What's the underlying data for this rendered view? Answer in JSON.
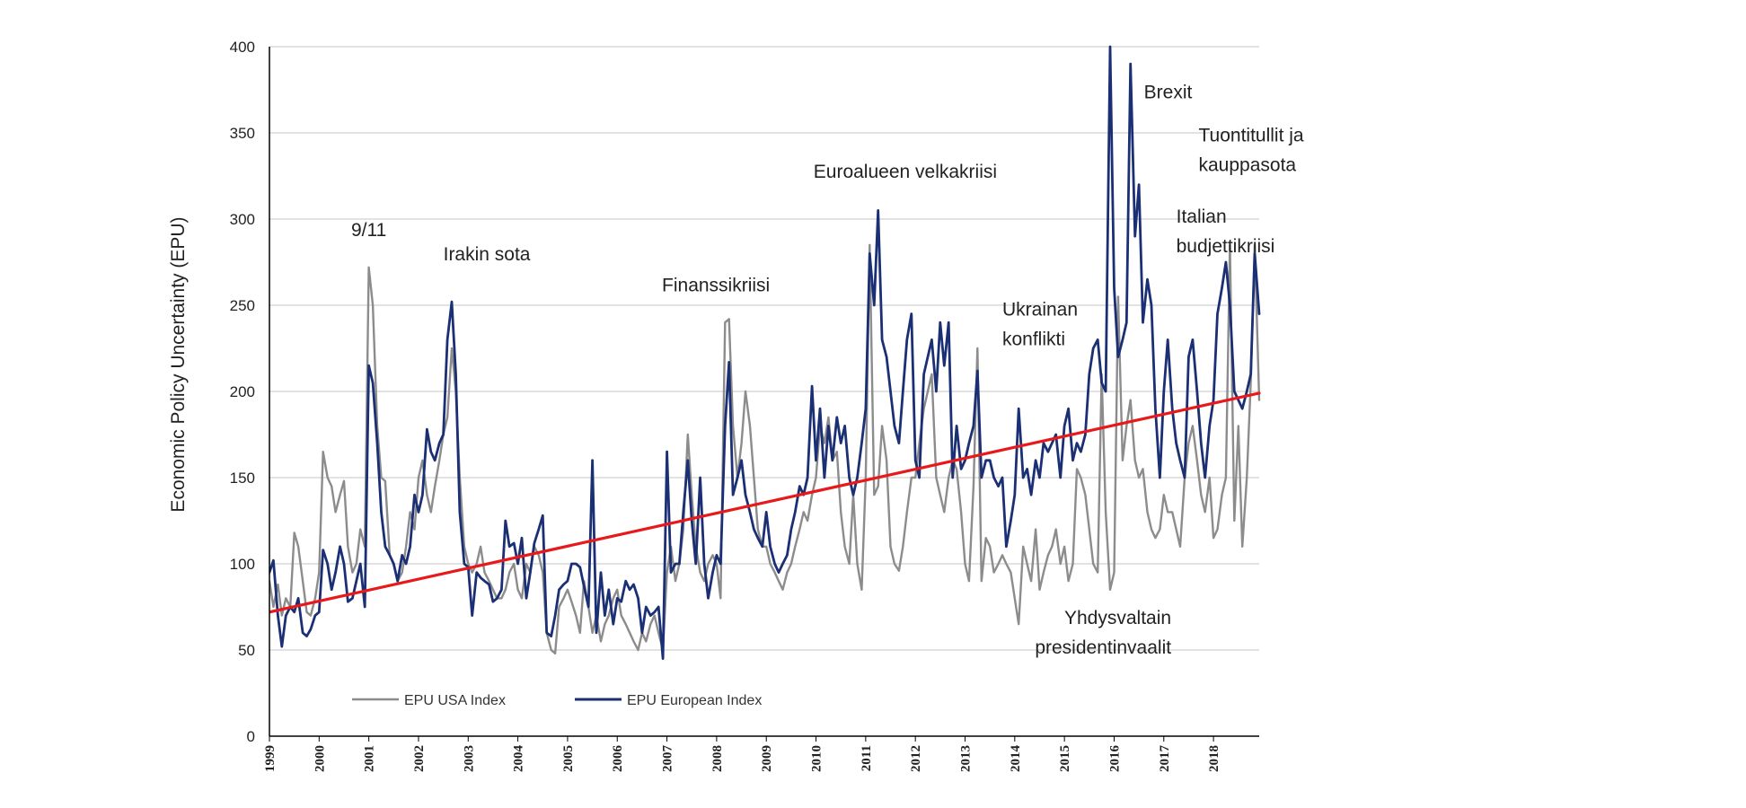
{
  "chart_data": {
    "type": "line",
    "ylabel": "Economic Policy Uncertainty (EPU)",
    "xlabel": "",
    "ylim": [
      0,
      400
    ],
    "xlim": [
      1999,
      2018.92
    ],
    "yticks": [
      0,
      50,
      100,
      150,
      200,
      250,
      300,
      350,
      400
    ],
    "xticks": [
      "1999",
      "2000",
      "2001",
      "2002",
      "2003",
      "2004",
      "2005",
      "2006",
      "2007",
      "2008",
      "2009",
      "2010",
      "2011",
      "2012",
      "2013",
      "2014",
      "2015",
      "2016",
      "2017",
      "2018"
    ],
    "grid": "horizontal",
    "legend_position": "bottom-left",
    "colors": {
      "usa": "#8c8c8c",
      "europe": "#1b2f74",
      "trend": "#e8191b",
      "grid": "#d9d9d9",
      "axis": "#000000"
    },
    "legend": [
      {
        "key": "usa",
        "label": "EPU USA Index"
      },
      {
        "key": "europe",
        "label": "EPU European Index"
      }
    ],
    "annotations": [
      {
        "lines": [
          "9/11"
        ],
        "x": 2001.0,
        "y": 290,
        "anchor": "middle"
      },
      {
        "lines": [
          "Irakin sota"
        ],
        "x": 2002.5,
        "y": 276,
        "anchor": "start"
      },
      {
        "lines": [
          "Finanssikriisi"
        ],
        "x": 2006.9,
        "y": 258,
        "anchor": "start"
      },
      {
        "lines": [
          "Euroalueen velkakriisi"
        ],
        "x": 2009.95,
        "y": 324,
        "anchor": "start"
      },
      {
        "lines": [
          "Ukrainan",
          "konflikti"
        ],
        "x": 2013.75,
        "y": 244,
        "anchor": "start"
      },
      {
        "lines": [
          "Brexit"
        ],
        "x": 2016.6,
        "y": 370,
        "anchor": "start"
      },
      {
        "lines": [
          "Tuontitullit ja",
          "kauppasota"
        ],
        "x": 2017.7,
        "y": 345,
        "anchor": "start"
      },
      {
        "lines": [
          "Italian",
          "budjettikriisi"
        ],
        "x": 2017.25,
        "y": 298,
        "anchor": "start"
      },
      {
        "lines": [
          "Yhdysvaltain",
          "presidentinvaalit"
        ],
        "x": 2017.15,
        "y": 65,
        "anchor": "end"
      }
    ],
    "series": [
      {
        "key": "usa",
        "name": "EPU USA Index",
        "x": [
          1999.0,
          1999.08,
          1999.17,
          1999.25,
          1999.33,
          1999.42,
          1999.5,
          1999.58,
          1999.67,
          1999.75,
          1999.83,
          1999.92,
          2000.0,
          2000.08,
          2000.17,
          2000.25,
          2000.33,
          2000.42,
          2000.5,
          2000.58,
          2000.67,
          2000.75,
          2000.83,
          2000.92,
          2001.0,
          2001.08,
          2001.17,
          2001.25,
          2001.33,
          2001.42,
          2001.5,
          2001.58,
          2001.67,
          2001.75,
          2001.83,
          2001.92,
          2002.0,
          2002.08,
          2002.17,
          2002.25,
          2002.33,
          2002.42,
          2002.5,
          2002.58,
          2002.67,
          2002.75,
          2002.83,
          2002.92,
          2003.0,
          2003.08,
          2003.17,
          2003.25,
          2003.33,
          2003.42,
          2003.5,
          2003.58,
          2003.67,
          2003.75,
          2003.83,
          2003.92,
          2004.0,
          2004.08,
          2004.17,
          2004.25,
          2004.33,
          2004.42,
          2004.5,
          2004.58,
          2004.67,
          2004.75,
          2004.83,
          2004.92,
          2005.0,
          2005.08,
          2005.17,
          2005.25,
          2005.33,
          2005.42,
          2005.5,
          2005.58,
          2005.67,
          2005.75,
          2005.83,
          2005.92,
          2006.0,
          2006.08,
          2006.17,
          2006.25,
          2006.33,
          2006.42,
          2006.5,
          2006.58,
          2006.67,
          2006.75,
          2006.83,
          2006.92,
          2007.0,
          2007.08,
          2007.17,
          2007.25,
          2007.33,
          2007.42,
          2007.5,
          2007.58,
          2007.67,
          2007.75,
          2007.83,
          2007.92,
          2008.0,
          2008.08,
          2008.17,
          2008.25,
          2008.33,
          2008.42,
          2008.5,
          2008.58,
          2008.67,
          2008.75,
          2008.83,
          2008.92,
          2009.0,
          2009.08,
          2009.17,
          2009.25,
          2009.33,
          2009.42,
          2009.5,
          2009.58,
          2009.67,
          2009.75,
          2009.83,
          2009.92,
          2010.0,
          2010.08,
          2010.17,
          2010.25,
          2010.33,
          2010.42,
          2010.5,
          2010.58,
          2010.67,
          2010.75,
          2010.83,
          2010.92,
          2011.0,
          2011.08,
          2011.17,
          2011.25,
          2011.33,
          2011.42,
          2011.5,
          2011.58,
          2011.67,
          2011.75,
          2011.83,
          2011.92,
          2012.0,
          2012.08,
          2012.17,
          2012.25,
          2012.33,
          2012.42,
          2012.5,
          2012.58,
          2012.67,
          2012.75,
          2012.83,
          2012.92,
          2013.0,
          2013.08,
          2013.17,
          2013.25,
          2013.33,
          2013.42,
          2013.5,
          2013.58,
          2013.67,
          2013.75,
          2013.83,
          2013.92,
          2014.0,
          2014.08,
          2014.17,
          2014.25,
          2014.33,
          2014.42,
          2014.5,
          2014.58,
          2014.67,
          2014.75,
          2014.83,
          2014.92,
          2015.0,
          2015.08,
          2015.17,
          2015.25,
          2015.33,
          2015.42,
          2015.5,
          2015.58,
          2015.67,
          2015.75,
          2015.83,
          2015.92,
          2016.0,
          2016.08,
          2016.17,
          2016.25,
          2016.33,
          2016.42,
          2016.5,
          2016.58,
          2016.67,
          2016.75,
          2016.83,
          2016.92,
          2017.0,
          2017.08,
          2017.17,
          2017.25,
          2017.33,
          2017.42,
          2017.5,
          2017.58,
          2017.67,
          2017.75,
          2017.83,
          2017.92,
          2018.0,
          2018.08,
          2018.17,
          2018.25,
          2018.33,
          2018.42,
          2018.5,
          2018.58,
          2018.67,
          2018.75,
          2018.83,
          2018.92
        ],
        "y": [
          90,
          75,
          88,
          70,
          80,
          75,
          118,
          110,
          90,
          72,
          70,
          80,
          95,
          165,
          150,
          145,
          130,
          140,
          148,
          110,
          95,
          100,
          120,
          110,
          272,
          250,
          180,
          150,
          148,
          105,
          100,
          90,
          95,
          110,
          130,
          120,
          150,
          160,
          140,
          130,
          145,
          160,
          175,
          185,
          225,
          200,
          150,
          110,
          100,
          95,
          100,
          110,
          95,
          90,
          85,
          80,
          80,
          85,
          95,
          100,
          85,
          80,
          100,
          95,
          110,
          105,
          95,
          60,
          50,
          48,
          75,
          80,
          85,
          78,
          70,
          60,
          90,
          75,
          60,
          70,
          55,
          65,
          70,
          80,
          85,
          70,
          65,
          60,
          55,
          50,
          60,
          55,
          65,
          70,
          60,
          50,
          95,
          110,
          90,
          100,
          120,
          175,
          140,
          110,
          95,
          90,
          100,
          105,
          100,
          80,
          240,
          242,
          180,
          150,
          170,
          200,
          180,
          150,
          120,
          110,
          110,
          100,
          95,
          90,
          85,
          95,
          100,
          110,
          120,
          130,
          125,
          140,
          150,
          180,
          170,
          185,
          160,
          165,
          130,
          110,
          100,
          140,
          100,
          85,
          150,
          285,
          140,
          145,
          180,
          160,
          110,
          100,
          96,
          110,
          130,
          150,
          150,
          170,
          190,
          200,
          210,
          150,
          140,
          130,
          150,
          160,
          155,
          130,
          100,
          90,
          145,
          225,
          90,
          115,
          110,
          95,
          100,
          105,
          100,
          95,
          80,
          65,
          110,
          100,
          90,
          120,
          85,
          95,
          105,
          110,
          120,
          100,
          110,
          90,
          100,
          155,
          150,
          140,
          120,
          100,
          95,
          210,
          130,
          85,
          95,
          255,
          160,
          180,
          195,
          160,
          150,
          155,
          130,
          120,
          115,
          120,
          140,
          130,
          130,
          120,
          110,
          150,
          170,
          180,
          160,
          140,
          130,
          150,
          115,
          120,
          140,
          150,
          285,
          125,
          180,
          110,
          150,
          205,
          285,
          195
        ]
      },
      {
        "key": "europe",
        "name": "EPU European Index",
        "x": [
          1999.0,
          1999.08,
          1999.17,
          1999.25,
          1999.33,
          1999.42,
          1999.5,
          1999.58,
          1999.67,
          1999.75,
          1999.83,
          1999.92,
          2000.0,
          2000.08,
          2000.17,
          2000.25,
          2000.33,
          2000.42,
          2000.5,
          2000.58,
          2000.67,
          2000.75,
          2000.83,
          2000.92,
          2001.0,
          2001.08,
          2001.17,
          2001.25,
          2001.33,
          2001.42,
          2001.5,
          2001.58,
          2001.67,
          2001.75,
          2001.83,
          2001.92,
          2002.0,
          2002.08,
          2002.17,
          2002.25,
          2002.33,
          2002.42,
          2002.5,
          2002.58,
          2002.67,
          2002.75,
          2002.83,
          2002.92,
          2003.0,
          2003.08,
          2003.17,
          2003.25,
          2003.33,
          2003.42,
          2003.5,
          2003.58,
          2003.67,
          2003.75,
          2003.83,
          2003.92,
          2004.0,
          2004.08,
          2004.17,
          2004.25,
          2004.33,
          2004.42,
          2004.5,
          2004.58,
          2004.67,
          2004.75,
          2004.83,
          2004.92,
          2005.0,
          2005.08,
          2005.17,
          2005.25,
          2005.33,
          2005.42,
          2005.5,
          2005.58,
          2005.67,
          2005.75,
          2005.83,
          2005.92,
          2006.0,
          2006.08,
          2006.17,
          2006.25,
          2006.33,
          2006.42,
          2006.5,
          2006.58,
          2006.67,
          2006.75,
          2006.83,
          2006.92,
          2007.0,
          2007.08,
          2007.17,
          2007.25,
          2007.33,
          2007.42,
          2007.5,
          2007.58,
          2007.67,
          2007.75,
          2007.83,
          2007.92,
          2008.0,
          2008.08,
          2008.17,
          2008.25,
          2008.33,
          2008.42,
          2008.5,
          2008.58,
          2008.67,
          2008.75,
          2008.83,
          2008.92,
          2009.0,
          2009.08,
          2009.17,
          2009.25,
          2009.33,
          2009.42,
          2009.5,
          2009.58,
          2009.67,
          2009.75,
          2009.83,
          2009.92,
          2010.0,
          2010.08,
          2010.17,
          2010.25,
          2010.33,
          2010.42,
          2010.5,
          2010.58,
          2010.67,
          2010.75,
          2010.83,
          2010.92,
          2011.0,
          2011.08,
          2011.17,
          2011.25,
          2011.33,
          2011.42,
          2011.5,
          2011.58,
          2011.67,
          2011.75,
          2011.83,
          2011.92,
          2012.0,
          2012.08,
          2012.17,
          2012.25,
          2012.33,
          2012.42,
          2012.5,
          2012.58,
          2012.67,
          2012.75,
          2012.83,
          2012.92,
          2013.0,
          2013.08,
          2013.17,
          2013.25,
          2013.33,
          2013.42,
          2013.5,
          2013.58,
          2013.67,
          2013.75,
          2013.83,
          2013.92,
          2014.0,
          2014.08,
          2014.17,
          2014.25,
          2014.33,
          2014.42,
          2014.5,
          2014.58,
          2014.67,
          2014.75,
          2014.83,
          2014.92,
          2015.0,
          2015.08,
          2015.17,
          2015.25,
          2015.33,
          2015.42,
          2015.5,
          2015.58,
          2015.67,
          2015.75,
          2015.83,
          2015.92,
          2016.0,
          2016.08,
          2016.17,
          2016.25,
          2016.33,
          2016.42,
          2016.5,
          2016.58,
          2016.67,
          2016.75,
          2016.83,
          2016.92,
          2017.0,
          2017.08,
          2017.17,
          2017.25,
          2017.33,
          2017.42,
          2017.5,
          2017.58,
          2017.67,
          2017.75,
          2017.83,
          2017.92,
          2018.0,
          2018.08,
          2018.17,
          2018.25,
          2018.33,
          2018.42,
          2018.5,
          2018.58,
          2018.67,
          2018.75,
          2018.83,
          2018.92
        ],
        "y": [
          95,
          102,
          70,
          52,
          70,
          75,
          72,
          80,
          60,
          58,
          62,
          70,
          72,
          108,
          100,
          85,
          95,
          110,
          100,
          78,
          80,
          90,
          100,
          75,
          215,
          205,
          170,
          130,
          110,
          105,
          100,
          90,
          105,
          100,
          110,
          140,
          130,
          140,
          178,
          165,
          160,
          170,
          175,
          230,
          252,
          210,
          130,
          100,
          98,
          70,
          95,
          92,
          90,
          88,
          78,
          80,
          85,
          125,
          110,
          112,
          100,
          115,
          80,
          95,
          112,
          120,
          128,
          60,
          58,
          70,
          85,
          88,
          90,
          100,
          100,
          98,
          87,
          75,
          160,
          60,
          95,
          70,
          85,
          65,
          80,
          78,
          90,
          85,
          88,
          80,
          60,
          75,
          70,
          72,
          75,
          45,
          165,
          95,
          100,
          100,
          130,
          160,
          125,
          100,
          150,
          100,
          80,
          95,
          105,
          100,
          180,
          217,
          140,
          150,
          160,
          140,
          130,
          120,
          115,
          110,
          130,
          110,
          100,
          95,
          100,
          105,
          120,
          130,
          145,
          140,
          150,
          203,
          160,
          190,
          150,
          180,
          160,
          185,
          170,
          180,
          150,
          140,
          150,
          170,
          190,
          280,
          250,
          305,
          230,
          220,
          200,
          180,
          170,
          200,
          230,
          245,
          160,
          150,
          210,
          220,
          230,
          200,
          240,
          215,
          240,
          150,
          180,
          155,
          160,
          170,
          180,
          212,
          150,
          160,
          160,
          150,
          145,
          150,
          110,
          125,
          140,
          190,
          150,
          155,
          140,
          160,
          150,
          170,
          165,
          170,
          175,
          150,
          180,
          190,
          160,
          170,
          165,
          175,
          210,
          225,
          230,
          205,
          200,
          400,
          260,
          220,
          230,
          240,
          390,
          290,
          320,
          240,
          265,
          250,
          190,
          150,
          200,
          230,
          190,
          170,
          160,
          150,
          220,
          230,
          200,
          170,
          150,
          180,
          195,
          245,
          260,
          275,
          250,
          200,
          195,
          190,
          200,
          210,
          280,
          245
        ]
      },
      {
        "key": "trend",
        "name": "",
        "x": [
          1999.0,
          2018.92
        ],
        "y": [
          72,
          199
        ]
      }
    ]
  }
}
